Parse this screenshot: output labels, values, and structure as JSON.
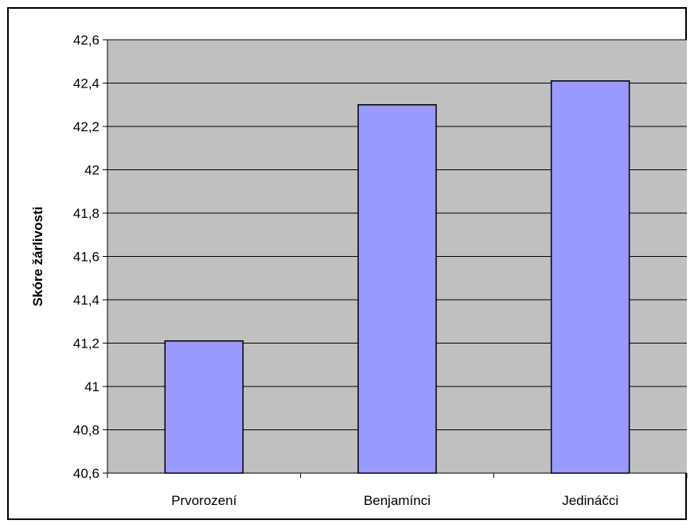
{
  "chart_data": {
    "type": "bar",
    "title": "",
    "xlabel": "",
    "ylabel": "Skóre žárlivosti",
    "categories": [
      "Prvorození",
      "Benjamínci",
      "Jedináčci"
    ],
    "values": [
      41.21,
      42.3,
      42.41
    ],
    "ylim": [
      40.6,
      42.6
    ],
    "yticks": [
      40.6,
      40.8,
      41,
      41.2,
      41.4,
      41.6,
      41.8,
      42,
      42.2,
      42.4,
      42.6
    ],
    "ytick_labels": [
      "40,6",
      "40,8",
      "41",
      "41,2",
      "41,4",
      "41,6",
      "41,8",
      "42",
      "42,2",
      "42,4",
      "42,6"
    ],
    "grid": true,
    "legend": "none",
    "colors": {
      "bar_fill": "#9999FF",
      "plot_background": "#C0C0C0",
      "gridline": "#000000",
      "frame": "#000000"
    }
  }
}
